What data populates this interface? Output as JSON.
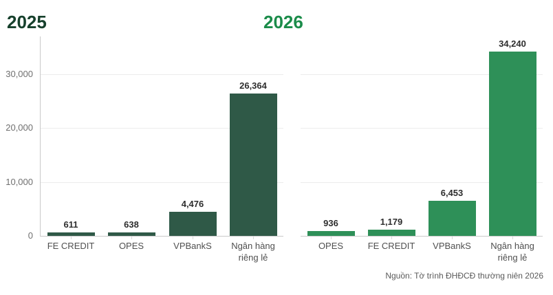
{
  "source": "Nguồn: Tờ trình ĐHĐCĐ thường niên 2026",
  "colors": {
    "title_2025": "#16402c",
    "title_2026": "#1b8c4a",
    "bars_2025": "#2f5947",
    "bars_2026": "#2e9058",
    "gridline": "#ececec",
    "axis_line": "#c9c9c9",
    "tick": "#d9d9d9",
    "y_tick_label": "#6f6f6f",
    "category_label": "#4f4f4f",
    "value_label": "#2d2d2d",
    "source_text": "#595959"
  },
  "chart_data": [
    {
      "type": "bar",
      "title": "2025",
      "categories": [
        "FE CREDIT",
        "OPES",
        "VPBankS",
        "Ngân hàng riêng lẻ"
      ],
      "values": [
        611,
        638,
        4476,
        26364
      ],
      "value_labels": [
        "611",
        "638",
        "4,476",
        "26,364"
      ],
      "xlabel": "",
      "ylabel": "",
      "ylim": [
        0,
        37000
      ],
      "yticks": [
        0,
        10000,
        20000,
        30000
      ],
      "ytick_labels": [
        "0",
        "10,000",
        "20,000",
        "30,000"
      ],
      "grid": true,
      "y_axis_labels_visible": true,
      "legend": "none"
    },
    {
      "type": "bar",
      "title": "2026",
      "categories": [
        "OPES",
        "FE CREDIT",
        "VPBankS",
        "Ngân hàng riêng lẻ"
      ],
      "values": [
        936,
        1179,
        6453,
        34240
      ],
      "value_labels": [
        "936",
        "1,179",
        "6,453",
        "34,240"
      ],
      "xlabel": "",
      "ylabel": "",
      "ylim": [
        0,
        37000
      ],
      "yticks": [
        0,
        10000,
        20000,
        30000
      ],
      "ytick_labels": [],
      "grid": true,
      "y_axis_labels_visible": false,
      "legend": "none"
    }
  ]
}
